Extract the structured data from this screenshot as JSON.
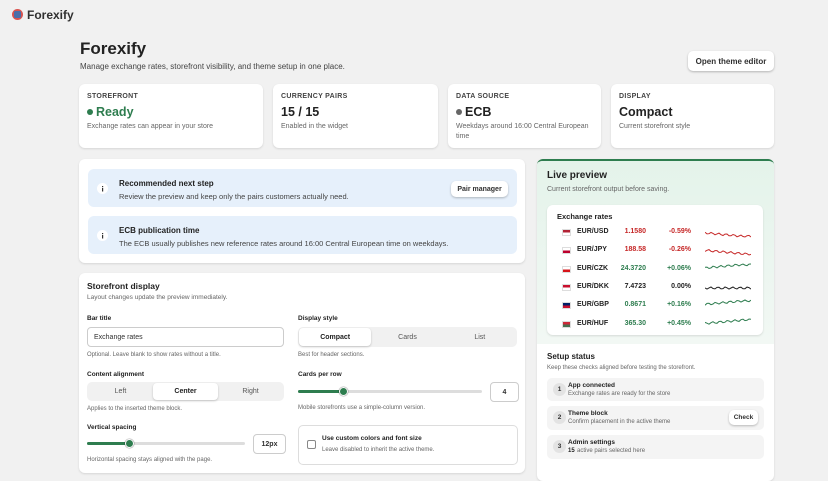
{
  "app": {
    "name": "Forexify"
  },
  "header": {
    "title": "Forexify",
    "subtitle": "Manage exchange rates, storefront visibility, and theme setup in one place.",
    "button": "Open theme editor"
  },
  "stats": [
    {
      "label": "STOREFRONT",
      "value": "Ready",
      "note": "Exchange rates can appear in your store"
    },
    {
      "label": "CURRENCY PAIRS",
      "value": "15 / 15",
      "note": "Enabled in the widget"
    },
    {
      "label": "DATA SOURCE",
      "value": "ECB",
      "note": "Weekdays around 16:00 Central European time"
    },
    {
      "label": "DISPLAY",
      "value": "Compact",
      "note": "Current storefront style"
    }
  ],
  "banners": [
    {
      "title": "Recommended next step",
      "text": "Review the preview and keep only the pairs customers actually need.",
      "button": "Pair manager"
    },
    {
      "title": "ECB publication time",
      "text": "The ECB usually publishes new reference rates around 16:00 Central European time on weekdays."
    }
  ],
  "settings": {
    "title": "Storefront display",
    "subtitle": "Layout changes update the preview immediately.",
    "bar_title": {
      "label": "Bar title",
      "value": "Exchange rates",
      "help": "Optional. Leave blank to show rates without a title."
    },
    "display_style": {
      "label": "Display style",
      "options": [
        "Compact",
        "Cards",
        "List"
      ],
      "help": "Best for header sections."
    },
    "content_alignment": {
      "label": "Content alignment",
      "options": [
        "Left",
        "Center",
        "Right"
      ],
      "help": "Applies to the inserted theme block."
    },
    "cards_per_row": {
      "label": "Cards per row",
      "value": "4",
      "help": "Mobile storefronts use a simple-column version."
    },
    "vertical_spacing": {
      "label": "Vertical spacing",
      "value": "12px",
      "help": "Horizontal spacing stays aligned with the page."
    },
    "custom_colors": {
      "label": "Use custom colors and font size",
      "help": "Leave disabled to inherit the active theme."
    }
  },
  "preview": {
    "title": "Live preview",
    "subtitle": "Current storefront output before saving.",
    "widget_title": "Exchange rates",
    "rates": [
      {
        "pair": "EUR/USD",
        "rate": "1.1580",
        "change": "-0.59%"
      },
      {
        "pair": "EUR/JPY",
        "rate": "188.58",
        "change": "-0.26%"
      },
      {
        "pair": "EUR/CZK",
        "rate": "24.3720",
        "change": "+0.06%"
      },
      {
        "pair": "EUR/DKK",
        "rate": "7.4723",
        "change": "0.00%"
      },
      {
        "pair": "EUR/GBP",
        "rate": "0.8671",
        "change": "+0.16%"
      },
      {
        "pair": "EUR/HUF",
        "rate": "365.30",
        "change": "+0.45%"
      }
    ]
  },
  "setup": {
    "title": "Setup status",
    "subtitle": "Keep these checks aligned before testing the storefront.",
    "steps": [
      {
        "num": "1",
        "title": "App connected",
        "text": "Exchange rates are ready for the store"
      },
      {
        "num": "2",
        "title": "Theme block",
        "text": "Confirm placement in the active theme",
        "button": "Check"
      },
      {
        "num": "3",
        "title": "Admin settings",
        "text_bold": "15",
        "text": "active pairs selected here"
      }
    ]
  }
}
